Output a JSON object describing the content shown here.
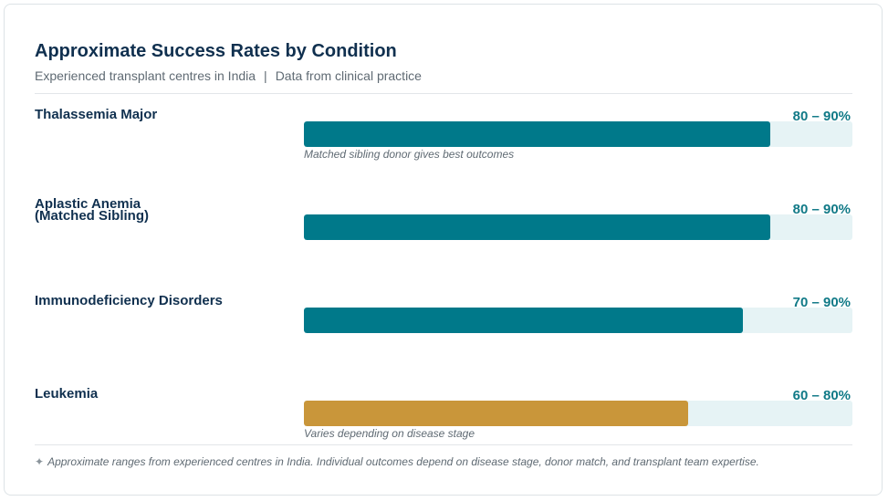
{
  "chart_data": {
    "type": "bar",
    "title": "Approximate Success Rates by Condition",
    "subtitle_left": "Experienced transplant centres in India",
    "subtitle_separator": "|",
    "subtitle_right": "Data from clinical practice",
    "xlim": [
      0,
      100
    ],
    "categories": [
      "Thalassemia Major",
      "Aplastic Anemia (Matched Sibling)",
      "Immunodeficiency Disorders",
      "Leukemia"
    ],
    "values": [
      85,
      85,
      80,
      70
    ],
    "ranges": [
      [
        80,
        90
      ],
      [
        80,
        90
      ],
      [
        70,
        90
      ],
      [
        60,
        80
      ]
    ],
    "range_labels": [
      "80 – 90%",
      "80 – 90%",
      "70 – 90%",
      "60 – 80%"
    ],
    "notes": [
      "Matched sibling donor gives best outcomes",
      "",
      "",
      "Varies depending on disease stage"
    ],
    "bar_colors": [
      "#00798a",
      "#00798a",
      "#00798a",
      "#c9963a"
    ],
    "track_color": "#e6f3f5"
  },
  "footnote": {
    "icon": "diamond-star-icon",
    "text": "Approximate ranges from experienced centres in India. Individual outcomes depend on disease stage, donor match, and transplant team expertise."
  }
}
